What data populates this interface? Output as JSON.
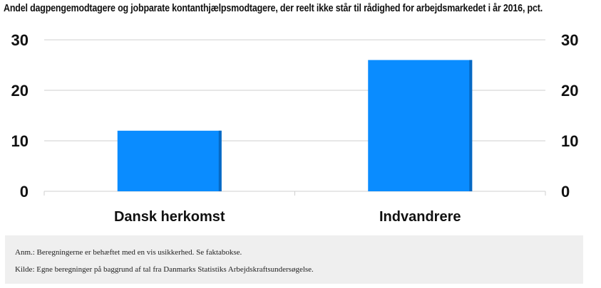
{
  "chart_data": {
    "type": "bar",
    "title": "Andel dagpengemodtagere og jobparate kontanthjælpsmodtagere, der reelt ikke står til rådighed for arbejdsmarkedet i år 2016, pct.",
    "categories": [
      "Dansk herkomst",
      "Indvandrere"
    ],
    "values": [
      12,
      26
    ],
    "ylim": [
      0,
      30
    ],
    "yticks": [
      0,
      10,
      20,
      30
    ],
    "ytick_labels": [
      "0",
      "10",
      "20",
      "30"
    ],
    "grid": true,
    "bar_color": "#0a8cff",
    "bar_edge_color": "#0669c4"
  },
  "notes": {
    "anm": "Anm.: Beregningerne er behæftet med en vis usikkerhed. Se faktabokse.",
    "kilde": "Kilde: Egne beregninger på baggrund af tal fra Danmarks Statistiks Arbejdskraftsundersøgelse."
  }
}
